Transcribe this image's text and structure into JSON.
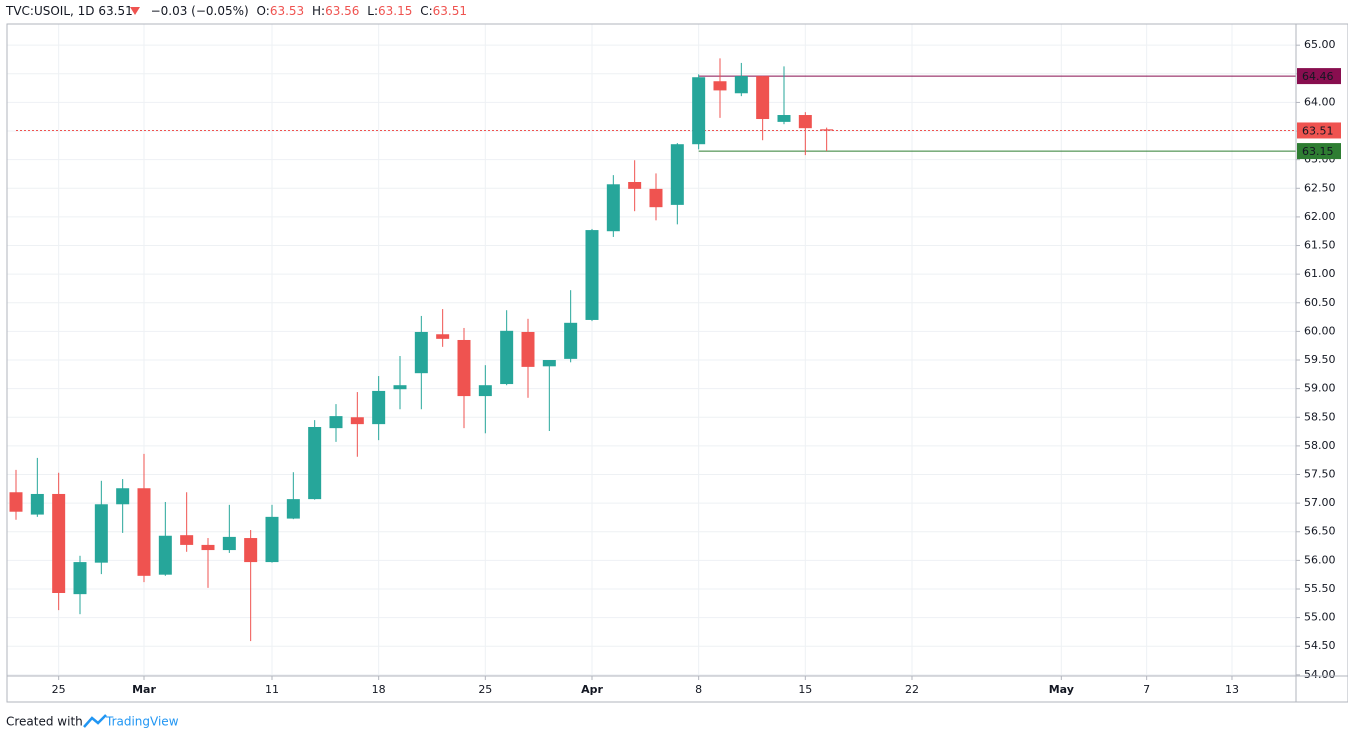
{
  "header": {
    "symbol": "TVC:USOIL, 1D",
    "last": "63.51",
    "change": "−0.03 (−0.05%)",
    "ohlc": [
      {
        "label": "O:",
        "value": "63.53"
      },
      {
        "label": "H:",
        "value": "63.56"
      },
      {
        "label": "L:",
        "value": "63.15"
      },
      {
        "label": "C:",
        "value": "63.51"
      }
    ]
  },
  "footer": {
    "text": "Created with",
    "brand": "TradingView"
  },
  "chart_data": {
    "type": "candlestick",
    "categories": [
      null,
      null,
      "25",
      null,
      null,
      null,
      "Mar",
      null,
      null,
      null,
      null,
      null,
      "11",
      null,
      null,
      null,
      null,
      "18",
      null,
      null,
      null,
      null,
      "25",
      null,
      null,
      null,
      null,
      "Apr",
      null,
      null,
      null,
      null,
      "8",
      null,
      null,
      null,
      null,
      "15",
      null,
      null,
      null,
      null,
      "22",
      null,
      null,
      null,
      null,
      null,
      null,
      "May",
      null,
      null,
      null,
      "7",
      null,
      null,
      null,
      "13",
      null,
      null,
      null
    ],
    "open": [
      57.19,
      56.8,
      57.16,
      55.41,
      55.96,
      56.98,
      57.26,
      55.75,
      56.44,
      56.27,
      56.18,
      56.39,
      55.97,
      56.73,
      57.07,
      58.31,
      58.5,
      58.38,
      58.99,
      59.27,
      59.95,
      59.85,
      58.87,
      59.08,
      59.99,
      59.39,
      59.52,
      60.2,
      61.75,
      62.61,
      62.49,
      62.21,
      63.27,
      64.37,
      64.16,
      64.46,
      63.66,
      63.78,
      63.53,
      null,
      null,
      null,
      null,
      null,
      null,
      null,
      null,
      null,
      null,
      null,
      null,
      null,
      null,
      null,
      null,
      null,
      null,
      null,
      null,
      null,
      null
    ],
    "high": [
      57.58,
      57.79,
      57.53,
      56.08,
      57.39,
      57.42,
      57.86,
      57.02,
      57.19,
      56.39,
      56.97,
      56.53,
      56.97,
      57.54,
      58.45,
      58.73,
      58.94,
      59.22,
      59.57,
      60.27,
      60.39,
      60.06,
      59.41,
      60.37,
      60.22,
      59.5,
      60.72,
      61.79,
      62.73,
      62.99,
      62.76,
      63.29,
      64.49,
      64.77,
      64.69,
      64.46,
      64.63,
      63.83,
      63.56,
      null,
      null,
      null,
      null,
      null,
      null,
      null,
      null,
      null,
      null,
      null,
      null,
      null,
      null,
      null,
      null,
      null,
      null,
      null,
      null,
      null,
      null
    ],
    "low": [
      56.71,
      56.76,
      55.13,
      55.06,
      55.76,
      56.48,
      55.62,
      55.73,
      56.15,
      55.52,
      56.13,
      54.59,
      55.96,
      56.72,
      57.06,
      58.07,
      57.81,
      58.1,
      58.64,
      58.64,
      59.73,
      58.31,
      58.22,
      59.06,
      58.84,
      58.26,
      59.46,
      60.18,
      61.65,
      62.1,
      61.94,
      61.87,
      63.18,
      63.73,
      64.11,
      63.34,
      63.62,
      63.08,
      63.15,
      null,
      null,
      null,
      null,
      null,
      null,
      null,
      null,
      null,
      null,
      null,
      null,
      null,
      null,
      null,
      null,
      null,
      null,
      null,
      null,
      null,
      null
    ],
    "close": [
      56.85,
      57.16,
      55.43,
      55.97,
      56.98,
      57.26,
      55.73,
      56.43,
      56.27,
      56.18,
      56.41,
      55.97,
      56.76,
      57.07,
      58.33,
      58.52,
      58.38,
      58.96,
      59.06,
      59.99,
      59.87,
      58.87,
      59.06,
      60.01,
      59.38,
      59.5,
      60.15,
      61.77,
      62.57,
      62.49,
      62.17,
      63.27,
      64.44,
      64.21,
      64.46,
      63.71,
      63.78,
      63.55,
      63.51,
      null,
      null,
      null,
      null,
      null,
      null,
      null,
      null,
      null,
      null,
      null,
      null,
      null,
      null,
      null,
      null,
      null,
      null,
      null,
      null,
      null,
      null
    ],
    "up_color": "#26a69a",
    "down_color": "#ef5350",
    "ylim": [
      53.98,
      65.37
    ],
    "yticks": [
      {
        "value": 54,
        "label": "54.00"
      },
      {
        "value": 54.5,
        "label": "54.50"
      },
      {
        "value": 55,
        "label": "55.00"
      },
      {
        "value": 55.5,
        "label": "55.50"
      },
      {
        "value": 56,
        "label": "56.00"
      },
      {
        "value": 56.5,
        "label": "56.50"
      },
      {
        "value": 57,
        "label": "57.00"
      },
      {
        "value": 57.5,
        "label": "57.50"
      },
      {
        "value": 58,
        "label": "58.00"
      },
      {
        "value": 58.5,
        "label": "58.50"
      },
      {
        "value": 59,
        "label": "59.00"
      },
      {
        "value": 59.5,
        "label": "59.50"
      },
      {
        "value": 60,
        "label": "60.00"
      },
      {
        "value": 60.5,
        "label": "60.50"
      },
      {
        "value": 61,
        "label": "61.00"
      },
      {
        "value": 61.5,
        "label": "61.50"
      },
      {
        "value": 62,
        "label": "62.00"
      },
      {
        "value": 62.5,
        "label": "62.50"
      },
      {
        "value": 63,
        "label": "63.00"
      },
      {
        "value": 63.5,
        "label": "63.50"
      },
      {
        "value": 64,
        "label": "64.00"
      },
      {
        "value": 64.5,
        "label": "64.50"
      },
      {
        "value": 65,
        "label": "65.00"
      }
    ],
    "grid": true,
    "hlines": [
      {
        "value": 64.46,
        "color": "#880e4f",
        "x_start": 32,
        "style": "solid"
      },
      {
        "value": 63.15,
        "color": "#2e7d32",
        "x_start": 32,
        "style": "solid"
      },
      {
        "value": 63.51,
        "color": "#ef5350",
        "x_start": 0,
        "style": "dotted"
      }
    ]
  }
}
